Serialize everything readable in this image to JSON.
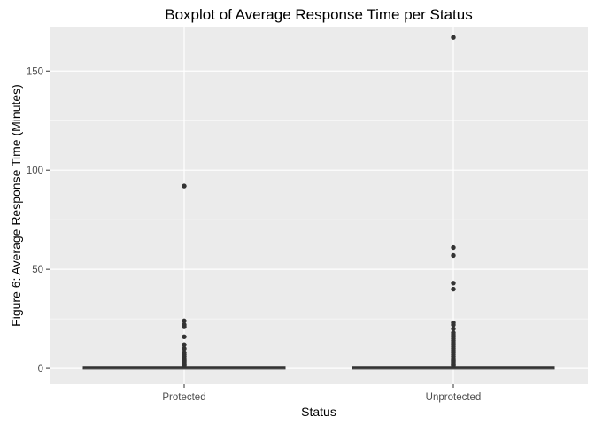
{
  "chart_data": {
    "type": "boxplot",
    "title": "Boxplot of Average Response Time per Status",
    "xlabel": "Status",
    "ylabel": "Figure 6: Average Response Time (Minutes)",
    "categories": [
      "Protected",
      "Unprotected"
    ],
    "ylim": [
      -8,
      172
    ],
    "yticks": [
      0,
      50,
      100,
      150
    ],
    "grid": true,
    "legend": "none",
    "colors": {
      "panel": "#ebebeb",
      "grid_major": "#ffffff",
      "box": "#333333",
      "outlier": "#333333"
    },
    "boxes": [
      {
        "category": "Protected",
        "min": 0,
        "q1": 0.1,
        "median": 0.3,
        "q3": 0.6,
        "max": 1.4,
        "outliers": [
          92,
          24,
          22,
          21,
          16,
          12,
          10,
          8,
          7,
          6,
          5,
          4.5,
          4,
          3.5,
          3,
          2.5,
          2,
          1.8,
          1.6
        ]
      },
      {
        "category": "Unprotected",
        "min": 0,
        "q1": 0.1,
        "median": 0.3,
        "q3": 0.6,
        "max": 1.4,
        "outliers": [
          167,
          61,
          57,
          43,
          40,
          23,
          22,
          20,
          18,
          17,
          16,
          15,
          14,
          13,
          12,
          11,
          10,
          9,
          8,
          7,
          6,
          5,
          4.5,
          4,
          3.5,
          3,
          2.5,
          2,
          1.8,
          1.6
        ]
      }
    ]
  }
}
